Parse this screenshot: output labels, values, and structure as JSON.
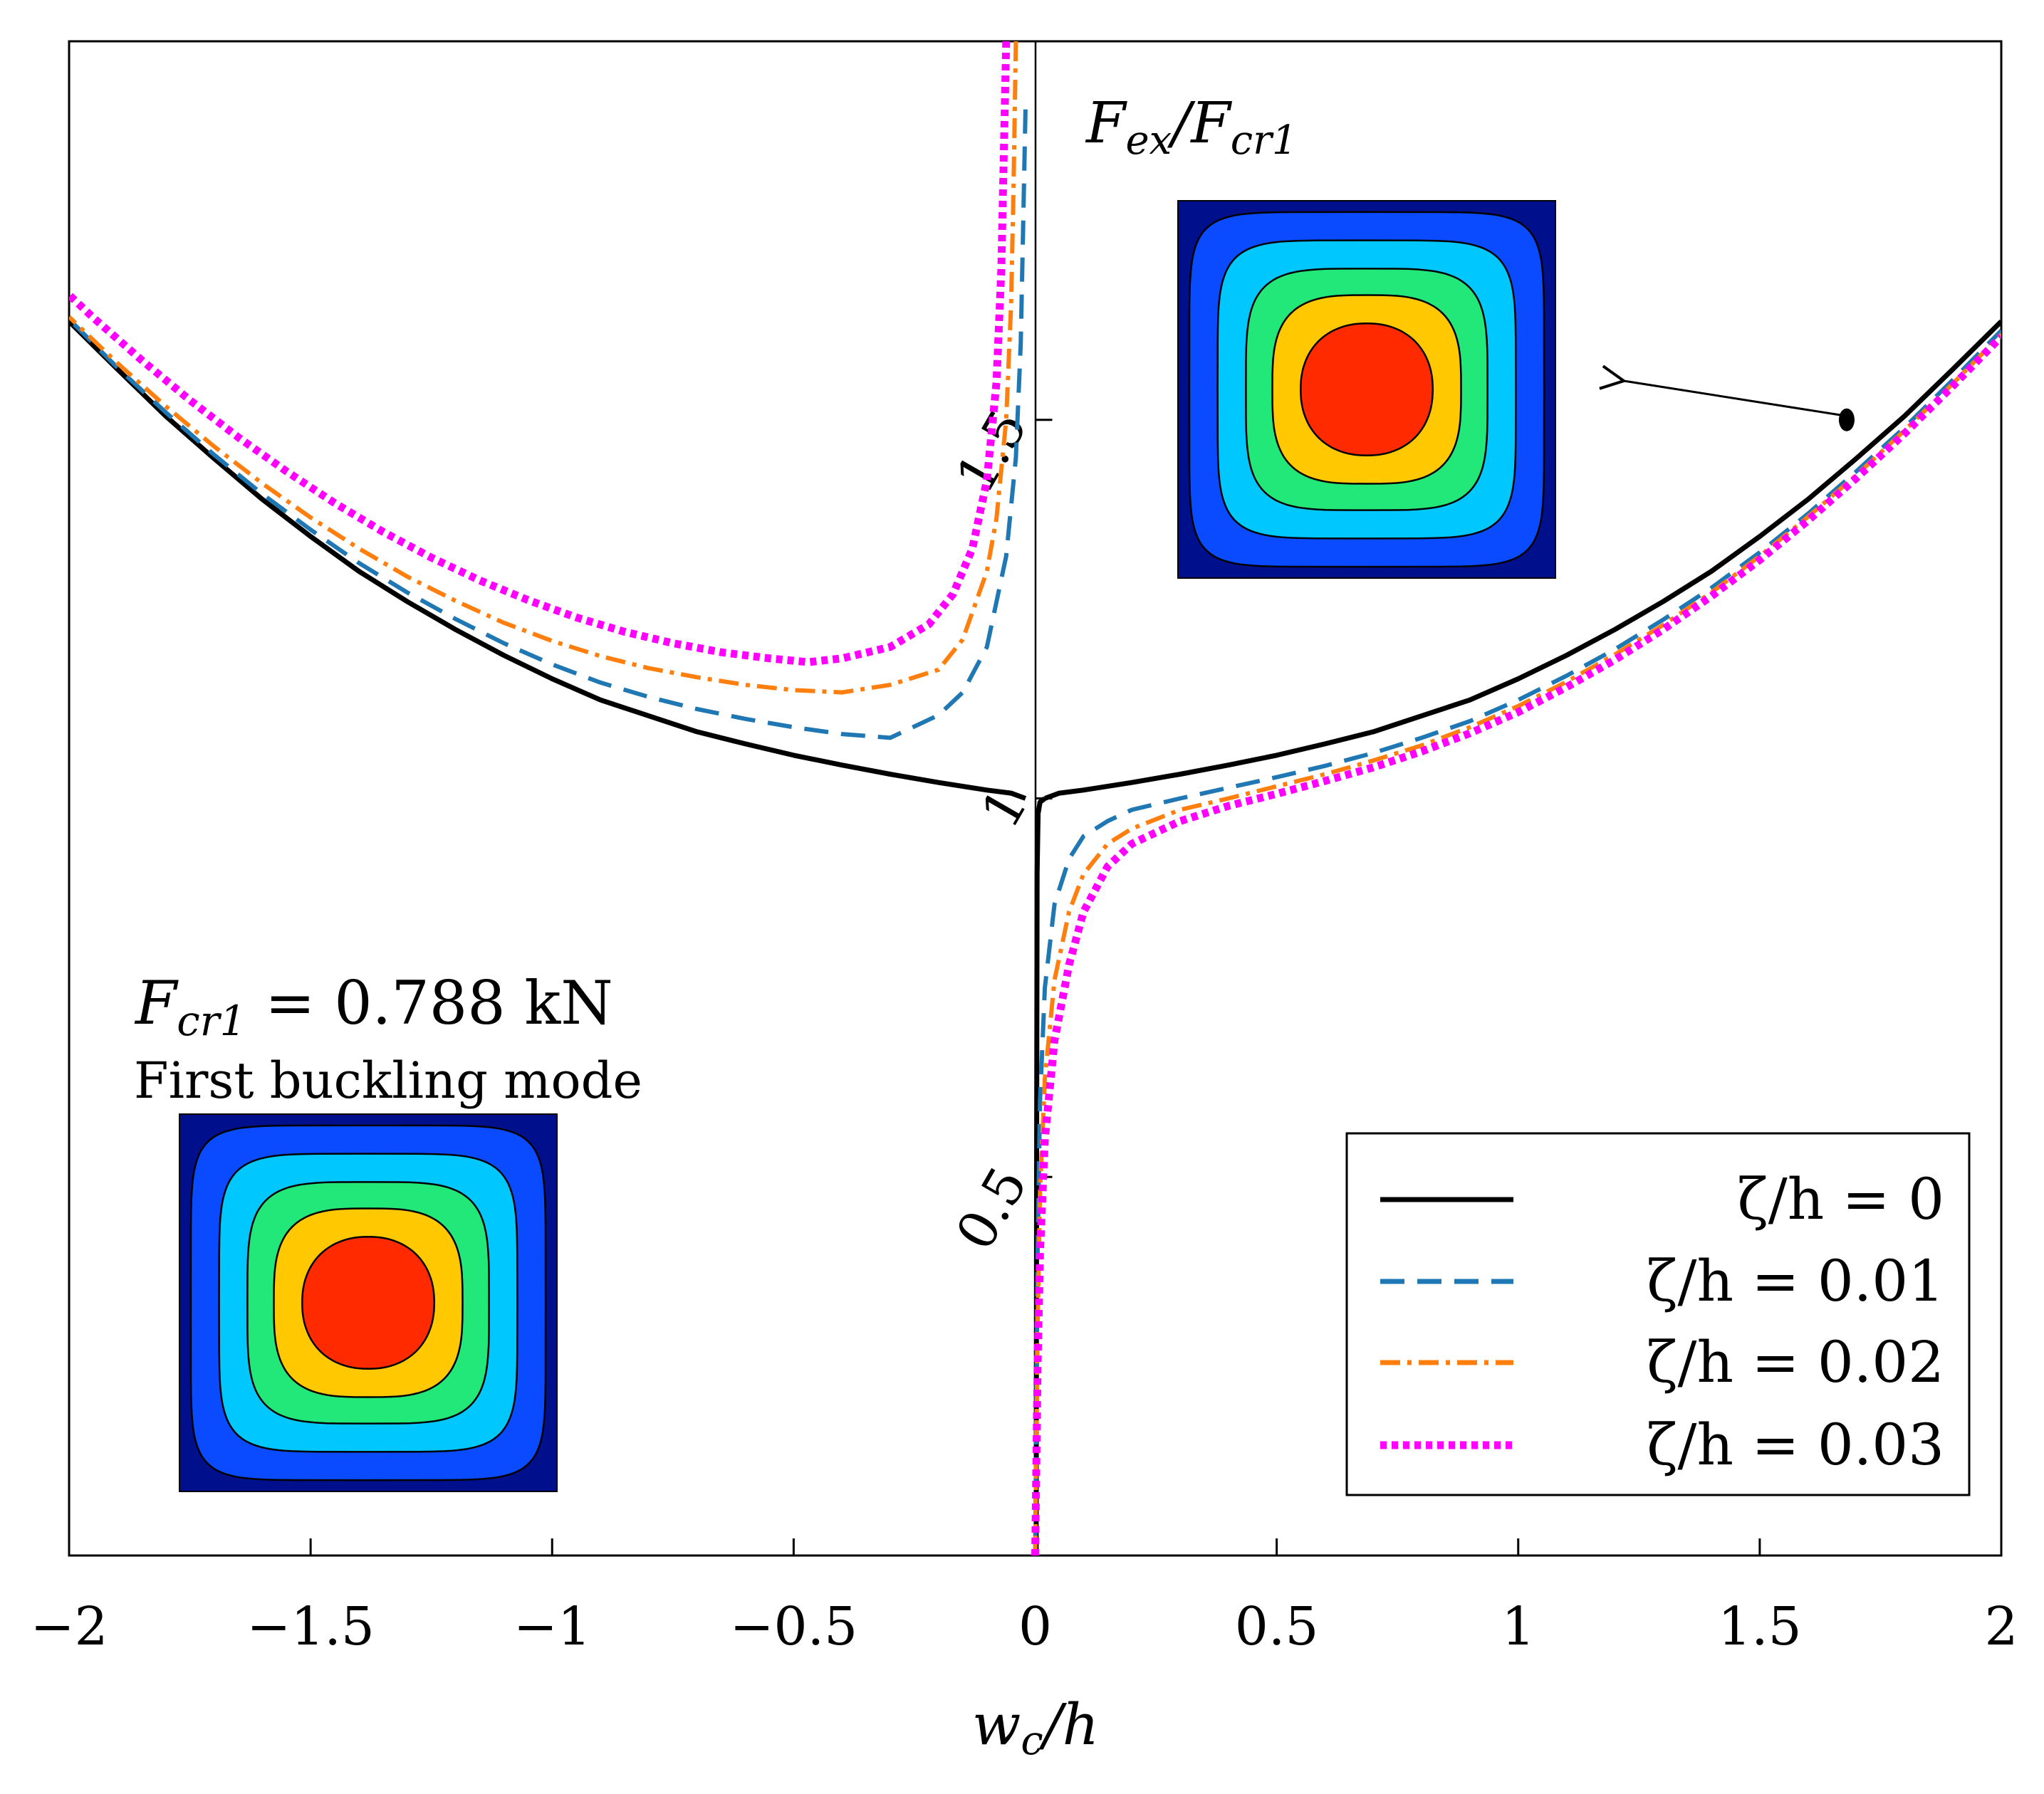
{
  "chart_data": {
    "type": "line",
    "title": "",
    "xlabel": "w_c/h",
    "ylabel": "F_ex/F_cr1",
    "xlim": [
      -2,
      2
    ],
    "ylim": [
      0,
      2.0
    ],
    "x_ticks": [
      -2,
      -1.5,
      -1,
      -0.5,
      0,
      0.5,
      1,
      1.5,
      2
    ],
    "x_tick_labels": [
      "−2",
      "−1.5",
      "−1",
      "−0.5",
      "0",
      "0.5",
      "1",
      "1.5",
      "2"
    ],
    "y_ticks": [
      0.5,
      1,
      1.5
    ],
    "y_tick_labels": [
      "0.5",
      "1",
      "1.5"
    ],
    "grid": false,
    "legend_position": "bottom-right",
    "annotations": {
      "critical_load": "F_cr1 = 0.788 kN",
      "mode_caption": "First buckling mode"
    },
    "series": [
      {
        "name": "ζ/h = 0",
        "color": "#000000",
        "dash": "solid",
        "branches": [
          {
            "x": [
              0.002,
              0.003,
              0.004,
              0.006,
              0.01,
              0.02
            ],
            "y": [
              0.0,
              0.5,
              0.9,
              0.98,
              0.995,
              1.0
            ]
          },
          {
            "x": [
              0.02,
              0.05,
              0.1,
              0.2,
              0.3,
              0.4,
              0.5,
              0.6,
              0.7,
              0.8,
              0.9,
              1.0,
              1.1,
              1.2,
              1.3,
              1.4,
              1.5,
              1.6,
              1.7,
              1.8,
              1.9,
              2.0
            ],
            "y": [
              1.0,
              1.007,
              1.011,
              1.021,
              1.032,
              1.044,
              1.057,
              1.072,
              1.088,
              1.109,
              1.13,
              1.158,
              1.189,
              1.223,
              1.26,
              1.3,
              1.346,
              1.395,
              1.449,
              1.505,
              1.567,
              1.63
            ]
          },
          {
            "x": [
              -0.02,
              -0.05,
              -0.1,
              -0.2,
              -0.3,
              -0.4,
              -0.5,
              -0.6,
              -0.7,
              -0.8,
              -0.9,
              -1.0,
              -1.1,
              -1.2,
              -1.3,
              -1.4,
              -1.5,
              -1.6,
              -1.7,
              -1.8,
              -1.9,
              -2.0
            ],
            "y": [
              1.0,
              1.007,
              1.011,
              1.021,
              1.032,
              1.044,
              1.057,
              1.072,
              1.088,
              1.109,
              1.13,
              1.158,
              1.189,
              1.223,
              1.26,
              1.3,
              1.346,
              1.395,
              1.449,
              1.505,
              1.567,
              1.63
            ]
          }
        ]
      },
      {
        "name": "ζ/h = 0.01",
        "color": "#1f77b4",
        "dash": "dashed",
        "branches": [
          {
            "x": [
              0.0,
              0.005,
              0.01,
              0.02,
              0.04,
              0.07,
              0.1,
              0.15,
              0.2,
              0.3,
              0.4,
              0.5,
              0.6,
              0.7,
              0.8,
              0.9,
              1.0,
              1.1,
              1.2,
              1.3,
              1.4,
              1.5,
              1.6,
              1.7,
              1.8,
              1.9,
              2.0
            ],
            "y": [
              0.0,
              0.4,
              0.6,
              0.75,
              0.86,
              0.92,
              0.95,
              0.97,
              0.985,
              1.0,
              1.014,
              1.028,
              1.043,
              1.06,
              1.08,
              1.102,
              1.13,
              1.162,
              1.197,
              1.236,
              1.278,
              1.325,
              1.376,
              1.432,
              1.49,
              1.553,
              1.618
            ]
          },
          {
            "x": [
              -0.02,
              -0.025,
              -0.03,
              -0.04,
              -0.06,
              -0.1,
              -0.15,
              -0.2,
              -0.3,
              -0.4,
              -0.5,
              -0.6,
              -0.7,
              -0.8,
              -0.9,
              -1.0,
              -1.1,
              -1.2,
              -1.3,
              -1.4,
              -1.5,
              -1.6,
              -1.7,
              -1.8,
              -1.9,
              -2.0
            ],
            "y": [
              1.91,
              1.75,
              1.6,
              1.45,
              1.32,
              1.2,
              1.14,
              1.11,
              1.08,
              1.085,
              1.094,
              1.105,
              1.118,
              1.134,
              1.153,
              1.177,
              1.205,
              1.237,
              1.272,
              1.311,
              1.355,
              1.402,
              1.454,
              1.51,
              1.569,
              1.633
            ]
          }
        ]
      },
      {
        "name": "ζ/h = 0.02",
        "color": "#ff7f0e",
        "dash": "dashdot",
        "branches": [
          {
            "x": [
              0.0,
              0.005,
              0.01,
              0.02,
              0.04,
              0.07,
              0.1,
              0.15,
              0.2,
              0.3,
              0.4,
              0.5,
              0.6,
              0.7,
              0.8,
              0.9,
              1.0,
              1.1,
              1.2,
              1.3,
              1.4,
              1.5,
              1.6,
              1.7,
              1.8,
              1.9,
              2.0
            ],
            "y": [
              0.0,
              0.3,
              0.48,
              0.63,
              0.76,
              0.85,
              0.9,
              0.94,
              0.96,
              0.985,
              1.0,
              1.016,
              1.032,
              1.05,
              1.07,
              1.094,
              1.122,
              1.154,
              1.19,
              1.229,
              1.272,
              1.32,
              1.372,
              1.427,
              1.486,
              1.548,
              1.613
            ]
          },
          {
            "x": [
              -0.04,
              -0.045,
              -0.05,
              -0.06,
              -0.08,
              -0.1,
              -0.15,
              -0.2,
              -0.3,
              -0.4,
              -0.5,
              -0.6,
              -0.7,
              -0.8,
              -0.9,
              -1.0,
              -1.1,
              -1.2,
              -1.3,
              -1.4,
              -1.5,
              -1.6,
              -1.7,
              -1.8,
              -1.9,
              -2.0
            ],
            "y": [
              2.0,
              1.8,
              1.65,
              1.5,
              1.37,
              1.3,
              1.21,
              1.17,
              1.15,
              1.14,
              1.143,
              1.15,
              1.16,
              1.172,
              1.188,
              1.208,
              1.232,
              1.261,
              1.293,
              1.33,
              1.371,
              1.416,
              1.465,
              1.518,
              1.575,
              1.636
            ]
          }
        ]
      },
      {
        "name": "ζ/h = 0.03",
        "color": "#ff00ff",
        "dash": "dotted",
        "branches": [
          {
            "x": [
              0.0,
              0.005,
              0.01,
              0.02,
              0.04,
              0.07,
              0.1,
              0.15,
              0.2,
              0.3,
              0.4,
              0.5,
              0.6,
              0.7,
              0.8,
              0.9,
              1.0,
              1.1,
              1.2,
              1.3,
              1.4,
              1.5,
              1.6,
              1.7,
              1.8,
              1.9,
              2.0
            ],
            "y": [
              0.0,
              0.25,
              0.4,
              0.55,
              0.68,
              0.78,
              0.85,
              0.91,
              0.94,
              0.97,
              0.99,
              1.006,
              1.023,
              1.041,
              1.062,
              1.086,
              1.114,
              1.147,
              1.183,
              1.223,
              1.267,
              1.315,
              1.367,
              1.423,
              1.482,
              1.545,
              1.61
            ]
          },
          {
            "x": [
              -0.06,
              -0.065,
              -0.07,
              -0.08,
              -0.1,
              -0.13,
              -0.17,
              -0.22,
              -0.3,
              -0.4,
              -0.47,
              -0.55,
              -0.65,
              -0.75,
              -0.85,
              -0.95,
              -1.05,
              -1.15,
              -1.25,
              -1.35,
              -1.45,
              -1.55,
              -1.65,
              -1.75,
              -1.85,
              -1.95,
              -2.0
            ],
            "y": [
              2.0,
              1.85,
              1.7,
              1.55,
              1.42,
              1.33,
              1.27,
              1.23,
              1.2,
              1.185,
              1.18,
              1.185,
              1.193,
              1.205,
              1.22,
              1.239,
              1.262,
              1.288,
              1.318,
              1.352,
              1.39,
              1.432,
              1.477,
              1.526,
              1.579,
              1.635,
              1.665
            ]
          }
        ]
      }
    ],
    "marker_point": {
      "x": 1.68,
      "y": 1.5
    }
  },
  "insets": {
    "mode_shape_colors": [
      "#000f8c",
      "#0a4bff",
      "#00c8ff",
      "#22e87a",
      "#ffc800",
      "#ff2a00"
    ]
  },
  "legend": {
    "entries": [
      "ζ/h = 0",
      "ζ/h = 0.01",
      "ζ/h = 0.02",
      "ζ/h = 0.03"
    ]
  }
}
